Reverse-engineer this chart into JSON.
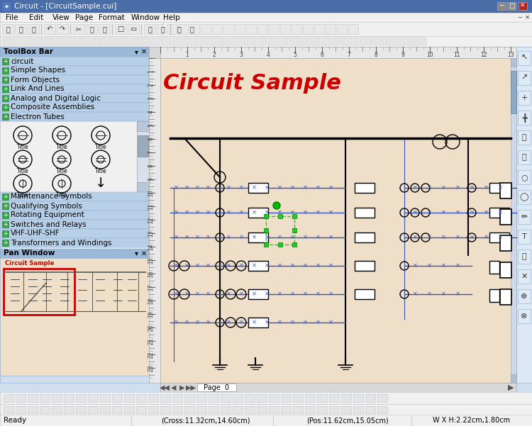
{
  "title_bar": "Circuit - [CircuitSample.cui]",
  "menu_items": [
    "File",
    "Edit",
    "View",
    "Page",
    "Format",
    "Window",
    "Help"
  ],
  "toolbox_items": [
    "circuit",
    "Simple Shapes",
    "Form Objects",
    "Link And Lines",
    "Analog and Digital Logic",
    "Composite Assemblies",
    "Electron Tubes"
  ],
  "toolbox_bottom": [
    "Maintenance Symbols",
    "Qualifying Symbols",
    "Rotating Equipment",
    "Switches and Relays",
    "VHF-UHF-SHF",
    "Transformers and Windings"
  ],
  "canvas_title": "Circuit Sample",
  "canvas_bg": "#f0dfc8",
  "canvas_title_color": "#cc0000",
  "window_bg": "#d0dff0",
  "sidebar_bg": "#c8daf0",
  "titlebar_bg": "#3c6ab0",
  "panel_bg": "#dce8f5",
  "status_text": "Ready",
  "status_cross": "Cross:11.32cm,14.60cm",
  "status_pos": "Pos:11.62cm,15.05cm",
  "status_wh": "W X H:2.22cm,1.80cm",
  "page_label": "Page  0",
  "blue": "#3355bb",
  "tb_item_bg": "#b8cfe8",
  "tb_header_bg": "#9ab8d8"
}
